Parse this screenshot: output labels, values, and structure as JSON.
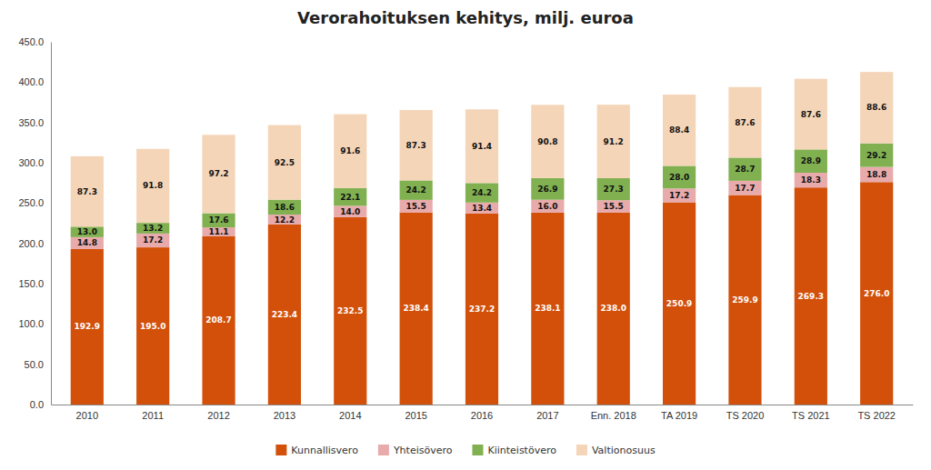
{
  "chart_data": {
    "type": "bar",
    "title": "Verorahoituksen kehitys, milj. euroa",
    "categories": [
      "2010",
      "2011",
      "2012",
      "2013",
      "2014",
      "2015",
      "2016",
      "2017",
      "Enn. 2018",
      "TA 2019",
      "TS 2020",
      "TS 2021",
      "TS 2022"
    ],
    "series": [
      {
        "name": "Kunnallisvero",
        "color": "#D2500A",
        "values": [
          192.9,
          195.0,
          208.7,
          223.4,
          232.5,
          238.4,
          237.2,
          238.1,
          238.0,
          250.9,
          259.9,
          269.3,
          276.0
        ],
        "value_labels": [
          "192.9",
          "195.0",
          "208.7",
          "223.4",
          "232.5",
          "238.4",
          "237.2",
          "238.1",
          "238.0",
          "250.9",
          "259.9",
          "269.3",
          "276.0"
        ]
      },
      {
        "name": "Yhteisövero",
        "color": "#E8AAAA",
        "values": [
          14.8,
          17.2,
          11.1,
          12.2,
          14.0,
          15.5,
          13.4,
          16.0,
          15.5,
          17.2,
          17.7,
          18.3,
          18.8
        ],
        "value_labels": [
          "14.8",
          "17.2",
          "11.1",
          "12.2",
          "14.0",
          "15.5",
          "13.4",
          "16.0",
          "15.5",
          "17.2",
          "17.7",
          "18.3",
          "18.8"
        ]
      },
      {
        "name": "Kiinteistövero",
        "color": "#80B050",
        "values": [
          13.0,
          13.2,
          17.6,
          18.6,
          22.1,
          24.2,
          24.2,
          26.9,
          27.3,
          28.0,
          28.7,
          28.9,
          29.2
        ],
        "value_labels": [
          "13.0",
          "13.2",
          "17.6",
          "18.6",
          "22.1",
          "24.2",
          "24.2",
          "26.9",
          "27.3",
          "28.0",
          "28.7",
          "28.9",
          "29.2"
        ]
      },
      {
        "name": "Valtionosuus",
        "color": "#F5D5B8",
        "values": [
          87.3,
          91.8,
          97.2,
          92.5,
          91.6,
          87.3,
          91.4,
          90.8,
          91.2,
          88.4,
          87.6,
          87.6,
          88.6
        ],
        "value_labels": [
          "87.3",
          "91.8",
          "97.2",
          "92.5",
          "91.6",
          "87.3",
          "91.4",
          "90.8",
          "91.2",
          "88.4",
          "87.6",
          "87.6",
          "88.6"
        ]
      }
    ],
    "ylim": [
      0,
      450
    ],
    "yticks": [
      {
        "value": 0,
        "label": "0.0"
      },
      {
        "value": 50,
        "label": "50.0"
      },
      {
        "value": 100,
        "label": "100.0"
      },
      {
        "value": 150,
        "label": "150.0"
      },
      {
        "value": 200,
        "label": "200.0"
      },
      {
        "value": 250,
        "label": "250.0"
      },
      {
        "value": 300,
        "label": "300.0"
      },
      {
        "value": 350,
        "label": "350.0"
      },
      {
        "value": 400,
        "label": "400.0"
      },
      {
        "value": 450,
        "label": "450.0"
      }
    ],
    "stacked": true,
    "data_labels": true,
    "grid": false,
    "legend": "bottom"
  }
}
